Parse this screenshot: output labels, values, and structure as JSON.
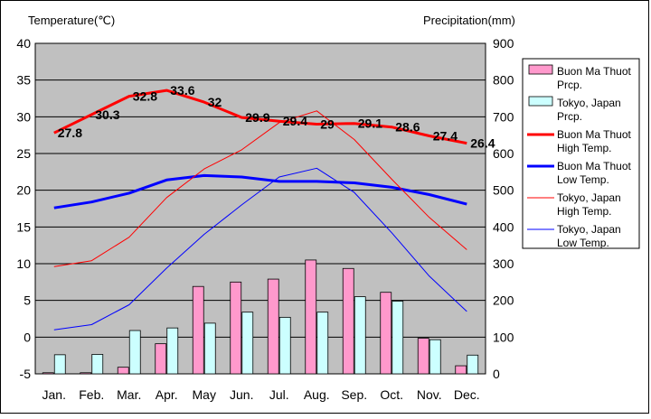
{
  "chart_data": {
    "type": "bar+line",
    "categories": [
      "Jan.",
      "Feb.",
      "Mar.",
      "Apr.",
      "May",
      "Jun.",
      "Jul.",
      "Aug.",
      "Sep.",
      "Oct.",
      "Nov.",
      "Dec."
    ],
    "left_axis": {
      "label": "Temperature(℃)",
      "ylim": [
        -5,
        40
      ],
      "ticks": [
        -5,
        0,
        5,
        10,
        15,
        20,
        25,
        30,
        35,
        40
      ]
    },
    "right_axis": {
      "label": "Precipitation(mm)",
      "ylim": [
        0,
        900
      ],
      "ticks": [
        0,
        100,
        200,
        300,
        400,
        500,
        600,
        700,
        800,
        900
      ]
    },
    "grid": true,
    "plot_background": "#c0c0c0",
    "legend": {
      "placement": "right"
    },
    "bar_series": [
      {
        "name": "Buon Ma Thuot Prcp.",
        "color": "#ff99cc",
        "values": [
          3,
          3,
          18,
          82,
          238,
          250,
          258,
          310,
          287,
          222,
          97,
          22
        ]
      },
      {
        "name": "Tokyo, Japan Prcp.",
        "color": "#ccffff",
        "values": [
          52,
          53,
          118,
          125,
          138,
          168,
          154,
          168,
          210,
          198,
          93,
          51
        ]
      }
    ],
    "line_series": [
      {
        "name": "Buon Ma Thuot High Temp.",
        "color": "#ff0000",
        "width": 3,
        "values": [
          27.8,
          30.3,
          32.8,
          33.6,
          32,
          29.9,
          29.4,
          29,
          29.1,
          28.6,
          27.4,
          26.4
        ],
        "labels": [
          "27.8",
          "30.3",
          "32.8",
          "33.6",
          "32",
          "29.9",
          "29.4",
          "29",
          "29.1",
          "28.6",
          "27.4",
          "26.4"
        ]
      },
      {
        "name": "Buon Ma Thuot Low Temp.",
        "color": "#0000ff",
        "width": 3,
        "values": [
          17.6,
          18.4,
          19.6,
          21.4,
          22,
          21.8,
          21.2,
          21.2,
          21,
          20.4,
          19.4,
          18.1
        ]
      },
      {
        "name": "Tokyo, Japan High Temp.",
        "color": "#ff0000",
        "width": 1,
        "values": [
          9.6,
          10.4,
          13.6,
          19,
          22.9,
          25.5,
          29.2,
          30.8,
          26.9,
          21.5,
          16.3,
          11.9
        ]
      },
      {
        "name": "Tokyo, Japan Low Temp.",
        "color": "#0000ff",
        "width": 1,
        "values": [
          1,
          1.7,
          4.4,
          9.4,
          14,
          18,
          21.8,
          23,
          19.7,
          14.2,
          8.3,
          3.5
        ]
      }
    ]
  }
}
